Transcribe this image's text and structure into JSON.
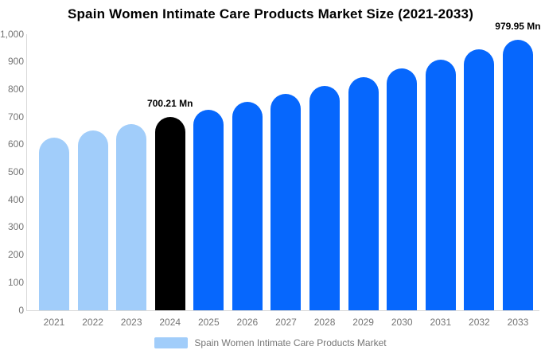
{
  "title": "Spain Women Intimate Care Products Market Size (2021-2033)",
  "legend": {
    "label": "Spain Women Intimate Care Products Market"
  },
  "colors": {
    "historical_bar": "#A1CDFA",
    "highlight_bar": "#000000",
    "forecast_bar": "#0667FD",
    "axis_line": "#D9D9D9",
    "tick_text": "#757575",
    "annotation_text": "#000000",
    "background": "#FFFFFF"
  },
  "chart_data": {
    "type": "bar",
    "title": "Spain Women Intimate Care Products Market Size (2021-2033)",
    "categories": [
      "2021",
      "2022",
      "2023",
      "2024",
      "2025",
      "2026",
      "2027",
      "2028",
      "2029",
      "2030",
      "2031",
      "2032",
      "2033"
    ],
    "values": [
      626,
      650,
      675,
      700.21,
      727,
      755,
      783,
      813,
      844,
      876,
      909,
      944,
      979.95
    ],
    "bar_color_roles": [
      "historical_bar",
      "historical_bar",
      "historical_bar",
      "highlight_bar",
      "forecast_bar",
      "forecast_bar",
      "forecast_bar",
      "forecast_bar",
      "forecast_bar",
      "forecast_bar",
      "forecast_bar",
      "forecast_bar",
      "forecast_bar"
    ],
    "annotations": [
      {
        "category": "2024",
        "text": "700.21 Mn"
      },
      {
        "category": "2033",
        "text": "979.95 Mn"
      }
    ],
    "xlabel": "",
    "ylabel": "",
    "ylim": [
      0,
      1000
    ],
    "ytick_interval": 100,
    "ytick_labels": [
      "0",
      "100",
      "200",
      "300",
      "400",
      "500",
      "600",
      "700",
      "800",
      "900",
      "1,000"
    ],
    "grid": false,
    "legend_position": "bottom",
    "legend_entries": [
      "Spain Women Intimate Care Products Market"
    ],
    "value_unit": "Mn"
  }
}
